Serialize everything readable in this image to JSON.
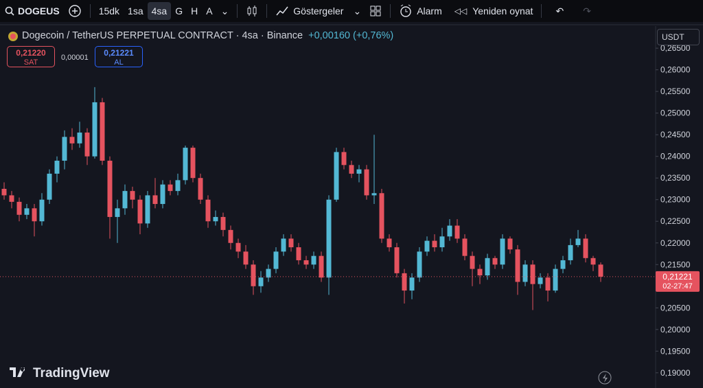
{
  "toolbar": {
    "symbol": "DOGEUS",
    "intervals": [
      "15dk",
      "1sa",
      "4sa",
      "G",
      "H",
      "A"
    ],
    "indicators": "Göstergeler",
    "alarm": "Alarm",
    "replay": "Yeniden oynat"
  },
  "header": {
    "title": "Dogecoin / TetherUS PERPETUAL CONTRACT · 4sa · Binance",
    "change": "+0,00160 (+0,76%)"
  },
  "order": {
    "sell_price": "0,21220",
    "sell": "SAT",
    "spread": "0,00001",
    "buy_price": "0,21221",
    "buy": "AL"
  },
  "currency": "USDT",
  "brand": "TradingView",
  "chart_data": {
    "type": "candlestick",
    "open": [
      0.2325,
      0.231,
      0.2295,
      0.2265,
      0.228,
      0.225,
      0.23,
      0.236,
      0.239,
      0.2445,
      0.243,
      0.2455,
      0.24,
      0.2525,
      0.239,
      0.226,
      0.228,
      0.232,
      0.23,
      0.2245,
      0.231,
      0.229,
      0.2335,
      0.232,
      0.2345,
      0.242,
      0.235,
      0.23,
      0.225,
      0.226,
      0.223,
      0.22,
      0.218,
      0.215,
      0.21,
      0.212,
      0.214,
      0.218,
      0.221,
      0.219,
      0.216,
      0.215,
      0.217,
      0.212,
      0.23,
      0.241,
      0.238,
      0.236,
      0.237,
      0.231,
      0.2315,
      0.221,
      0.219,
      0.213,
      0.209,
      0.212,
      0.218,
      0.2205,
      0.219,
      0.2215,
      0.224,
      0.221,
      0.217,
      0.214,
      0.2125,
      0.2165,
      0.215,
      0.221,
      0.2185,
      0.211,
      0.215,
      0.2105,
      0.212,
      0.209,
      0.214,
      0.216,
      0.2195,
      0.221,
      0.2165,
      0.215
    ],
    "high": [
      0.234,
      0.232,
      0.2305,
      0.229,
      0.229,
      0.2315,
      0.237,
      0.24,
      0.246,
      0.2465,
      0.248,
      0.2465,
      0.256,
      0.2535,
      0.24,
      0.23,
      0.2335,
      0.233,
      0.231,
      0.232,
      0.235,
      0.2345,
      0.2345,
      0.236,
      0.2425,
      0.2425,
      0.236,
      0.231,
      0.2275,
      0.227,
      0.224,
      0.221,
      0.2195,
      0.216,
      0.2135,
      0.215,
      0.219,
      0.222,
      0.222,
      0.22,
      0.217,
      0.218,
      0.218,
      0.231,
      0.242,
      0.242,
      0.239,
      0.238,
      0.238,
      0.245,
      0.2325,
      0.222,
      0.22,
      0.214,
      0.213,
      0.219,
      0.2215,
      0.222,
      0.2235,
      0.2255,
      0.2255,
      0.222,
      0.218,
      0.215,
      0.2175,
      0.217,
      0.222,
      0.2215,
      0.2195,
      0.216,
      0.216,
      0.213,
      0.213,
      0.215,
      0.217,
      0.221,
      0.223,
      0.222,
      0.217,
      0.2155
    ],
    "low": [
      0.23,
      0.228,
      0.225,
      0.2255,
      0.2215,
      0.224,
      0.229,
      0.234,
      0.237,
      0.2415,
      0.242,
      0.238,
      0.2395,
      0.238,
      0.221,
      0.22,
      0.2265,
      0.228,
      0.222,
      0.2235,
      0.228,
      0.228,
      0.231,
      0.231,
      0.2335,
      0.234,
      0.229,
      0.2235,
      0.224,
      0.2215,
      0.2185,
      0.2165,
      0.214,
      0.208,
      0.2085,
      0.211,
      0.213,
      0.217,
      0.218,
      0.215,
      0.214,
      0.214,
      0.211,
      0.208,
      0.2295,
      0.237,
      0.235,
      0.234,
      0.23,
      0.229,
      0.22,
      0.218,
      0.212,
      0.206,
      0.207,
      0.211,
      0.217,
      0.218,
      0.218,
      0.2205,
      0.22,
      0.216,
      0.21,
      0.2105,
      0.2115,
      0.214,
      0.214,
      0.2175,
      0.208,
      0.21,
      0.2045,
      0.2095,
      0.2065,
      0.2085,
      0.213,
      0.215,
      0.219,
      0.2155,
      0.2135,
      0.211
    ],
    "close": [
      0.231,
      0.2295,
      0.2265,
      0.228,
      0.225,
      0.23,
      0.236,
      0.239,
      0.2445,
      0.243,
      0.2455,
      0.24,
      0.2525,
      0.239,
      0.226,
      0.228,
      0.232,
      0.23,
      0.2245,
      0.231,
      0.229,
      0.2335,
      0.232,
      0.2345,
      0.242,
      0.235,
      0.23,
      0.225,
      0.226,
      0.223,
      0.22,
      0.218,
      0.215,
      0.21,
      0.212,
      0.214,
      0.218,
      0.221,
      0.219,
      0.216,
      0.215,
      0.217,
      0.212,
      0.23,
      0.241,
      0.238,
      0.236,
      0.237,
      0.231,
      0.2315,
      0.221,
      0.219,
      0.213,
      0.209,
      0.212,
      0.218,
      0.2205,
      0.219,
      0.2215,
      0.224,
      0.221,
      0.217,
      0.214,
      0.2125,
      0.2165,
      0.215,
      0.221,
      0.2185,
      0.211,
      0.215,
      0.2105,
      0.212,
      0.209,
      0.214,
      0.216,
      0.2195,
      0.221,
      0.2165,
      0.215,
      0.21221
    ],
    "up_color": "#53b8d4",
    "down_color": "#e5535f",
    "ylim": [
      0.1868,
      0.2701
    ],
    "yticks": [
      {
        "value": 0.19,
        "label": "0,19000"
      },
      {
        "value": 0.195,
        "label": "0,19500"
      },
      {
        "value": 0.2,
        "label": "0,20000"
      },
      {
        "value": 0.205,
        "label": "0,20500"
      },
      {
        "value": 0.21,
        "label": "0,21000"
      },
      {
        "value": 0.215,
        "label": "0,21500"
      },
      {
        "value": 0.22,
        "label": "0,22000"
      },
      {
        "value": 0.225,
        "label": "0,22500"
      },
      {
        "value": 0.23,
        "label": "0,23000"
      },
      {
        "value": 0.235,
        "label": "0,23500"
      },
      {
        "value": 0.24,
        "label": "0,24000"
      },
      {
        "value": 0.245,
        "label": "0,24500"
      },
      {
        "value": 0.25,
        "label": "0,25000"
      },
      {
        "value": 0.255,
        "label": "0,25500"
      },
      {
        "value": 0.26,
        "label": "0,26000"
      },
      {
        "value": 0.265,
        "label": "0,26500"
      }
    ],
    "last_price": {
      "value": 0.21221,
      "label": "0,21221"
    },
    "countdown": "02-27:47"
  }
}
